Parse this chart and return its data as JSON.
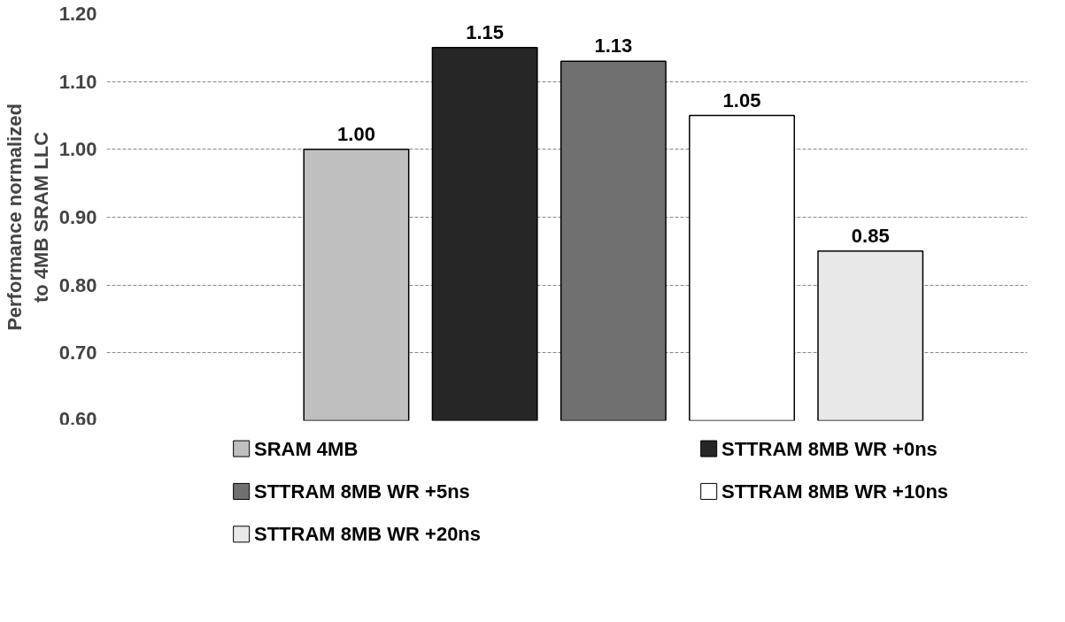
{
  "chart_data": {
    "type": "bar",
    "ylabel": "Performance normalized\nto 4MB SRAM LLC",
    "categories": [
      null
    ],
    "series": [
      {
        "name": "SRAM 4MB",
        "color": "#bfbfbf",
        "values": [
          1.0
        ],
        "value_labels": [
          "1.00"
        ]
      },
      {
        "name": "STTRAM 8MB WR +0ns",
        "color": "#262626",
        "values": [
          1.15
        ],
        "value_labels": [
          "1.15"
        ]
      },
      {
        "name": "STTRAM 8MB WR +5ns",
        "color": "#707070",
        "values": [
          1.13
        ],
        "value_labels": [
          "1.13"
        ]
      },
      {
        "name": "STTRAM 8MB WR +10ns",
        "color": "#ffffff",
        "values": [
          1.05
        ],
        "value_labels": [
          "1.05"
        ]
      },
      {
        "name": "STTRAM 8MB WR +20ns",
        "color": "#e8e8e8",
        "values": [
          0.85
        ],
        "value_labels": [
          "0.85"
        ]
      }
    ],
    "ylim": [
      0.6,
      1.2
    ],
    "yticks": [
      {
        "value": 0.6,
        "label": "0.60"
      },
      {
        "value": 0.7,
        "label": "0.70"
      },
      {
        "value": 0.8,
        "label": "0.80"
      },
      {
        "value": 0.9,
        "label": "0.90"
      },
      {
        "value": 1.0,
        "label": "1.00"
      },
      {
        "value": 1.1,
        "label": "1.10"
      },
      {
        "value": 1.2,
        "label": "1.20"
      }
    ],
    "grid": "y",
    "legend": "bottom"
  }
}
